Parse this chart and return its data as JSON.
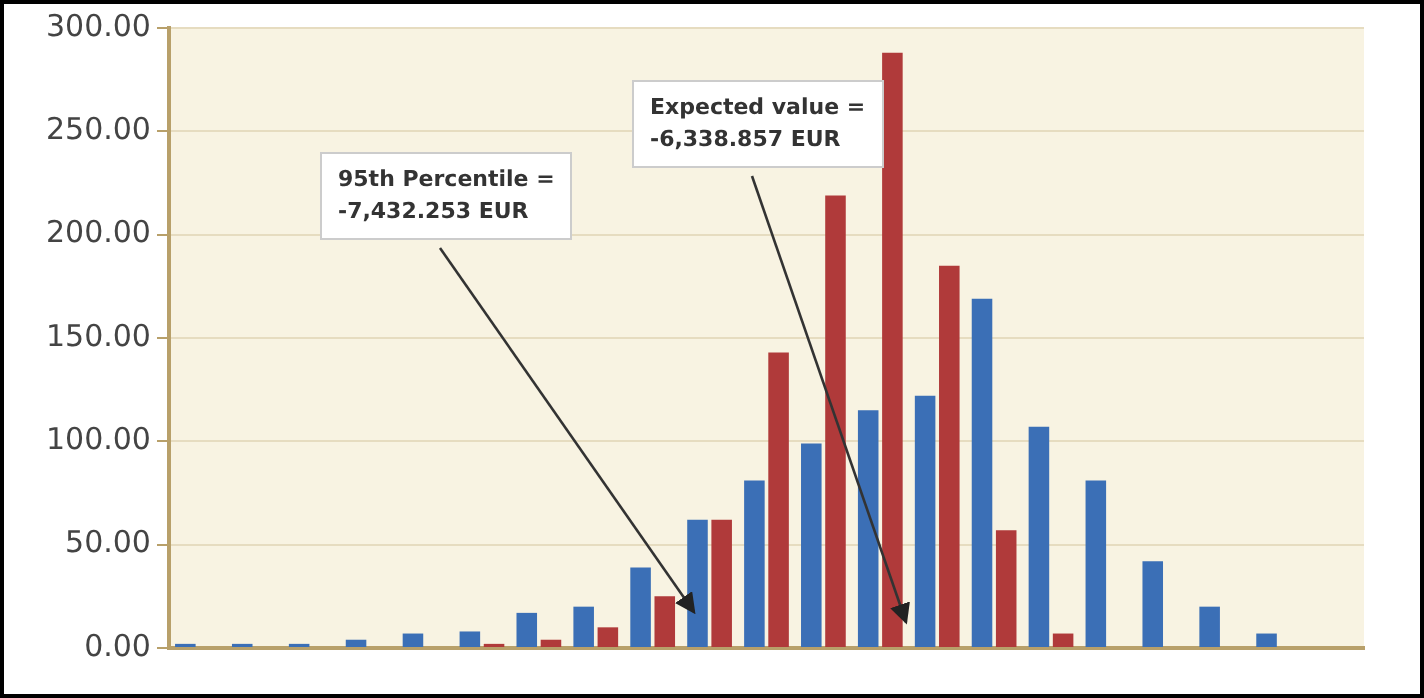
{
  "chart_data": {
    "type": "bar",
    "categories": [
      null,
      null,
      null,
      null,
      null,
      null,
      null,
      null,
      null,
      null,
      null,
      null,
      null,
      null,
      null,
      null,
      null,
      null,
      null,
      null,
      null
    ],
    "series": [
      {
        "color": "#3b6fb6",
        "values": [
          2,
          2,
          2,
          4,
          7,
          8,
          17,
          20,
          39,
          62,
          81,
          99,
          115,
          122,
          169,
          107,
          81,
          42,
          20,
          7,
          0
        ]
      },
      {
        "color": "#b03a3a",
        "values": [
          0,
          0,
          0,
          0,
          0,
          2,
          4,
          10,
          25,
          62,
          143,
          219,
          288,
          185,
          57,
          7,
          0,
          0,
          0,
          0,
          0
        ]
      }
    ],
    "ylim": [
      0,
      300
    ],
    "yticks": [
      {
        "value": 0,
        "label": "0.00"
      },
      {
        "value": 50,
        "label": "50.00"
      },
      {
        "value": 100,
        "label": "100.00"
      },
      {
        "value": 150,
        "label": "150.00"
      },
      {
        "value": 200,
        "label": "200.00"
      },
      {
        "value": 250,
        "label": "250.00"
      },
      {
        "value": 300,
        "label": "300.00"
      }
    ],
    "grid": "y",
    "tick_labels": "y",
    "legend": false,
    "annotations": [
      "95th Percentile =\n-7,432.253 EUR",
      "Expected value =\n-6,338.857 EUR"
    ]
  }
}
